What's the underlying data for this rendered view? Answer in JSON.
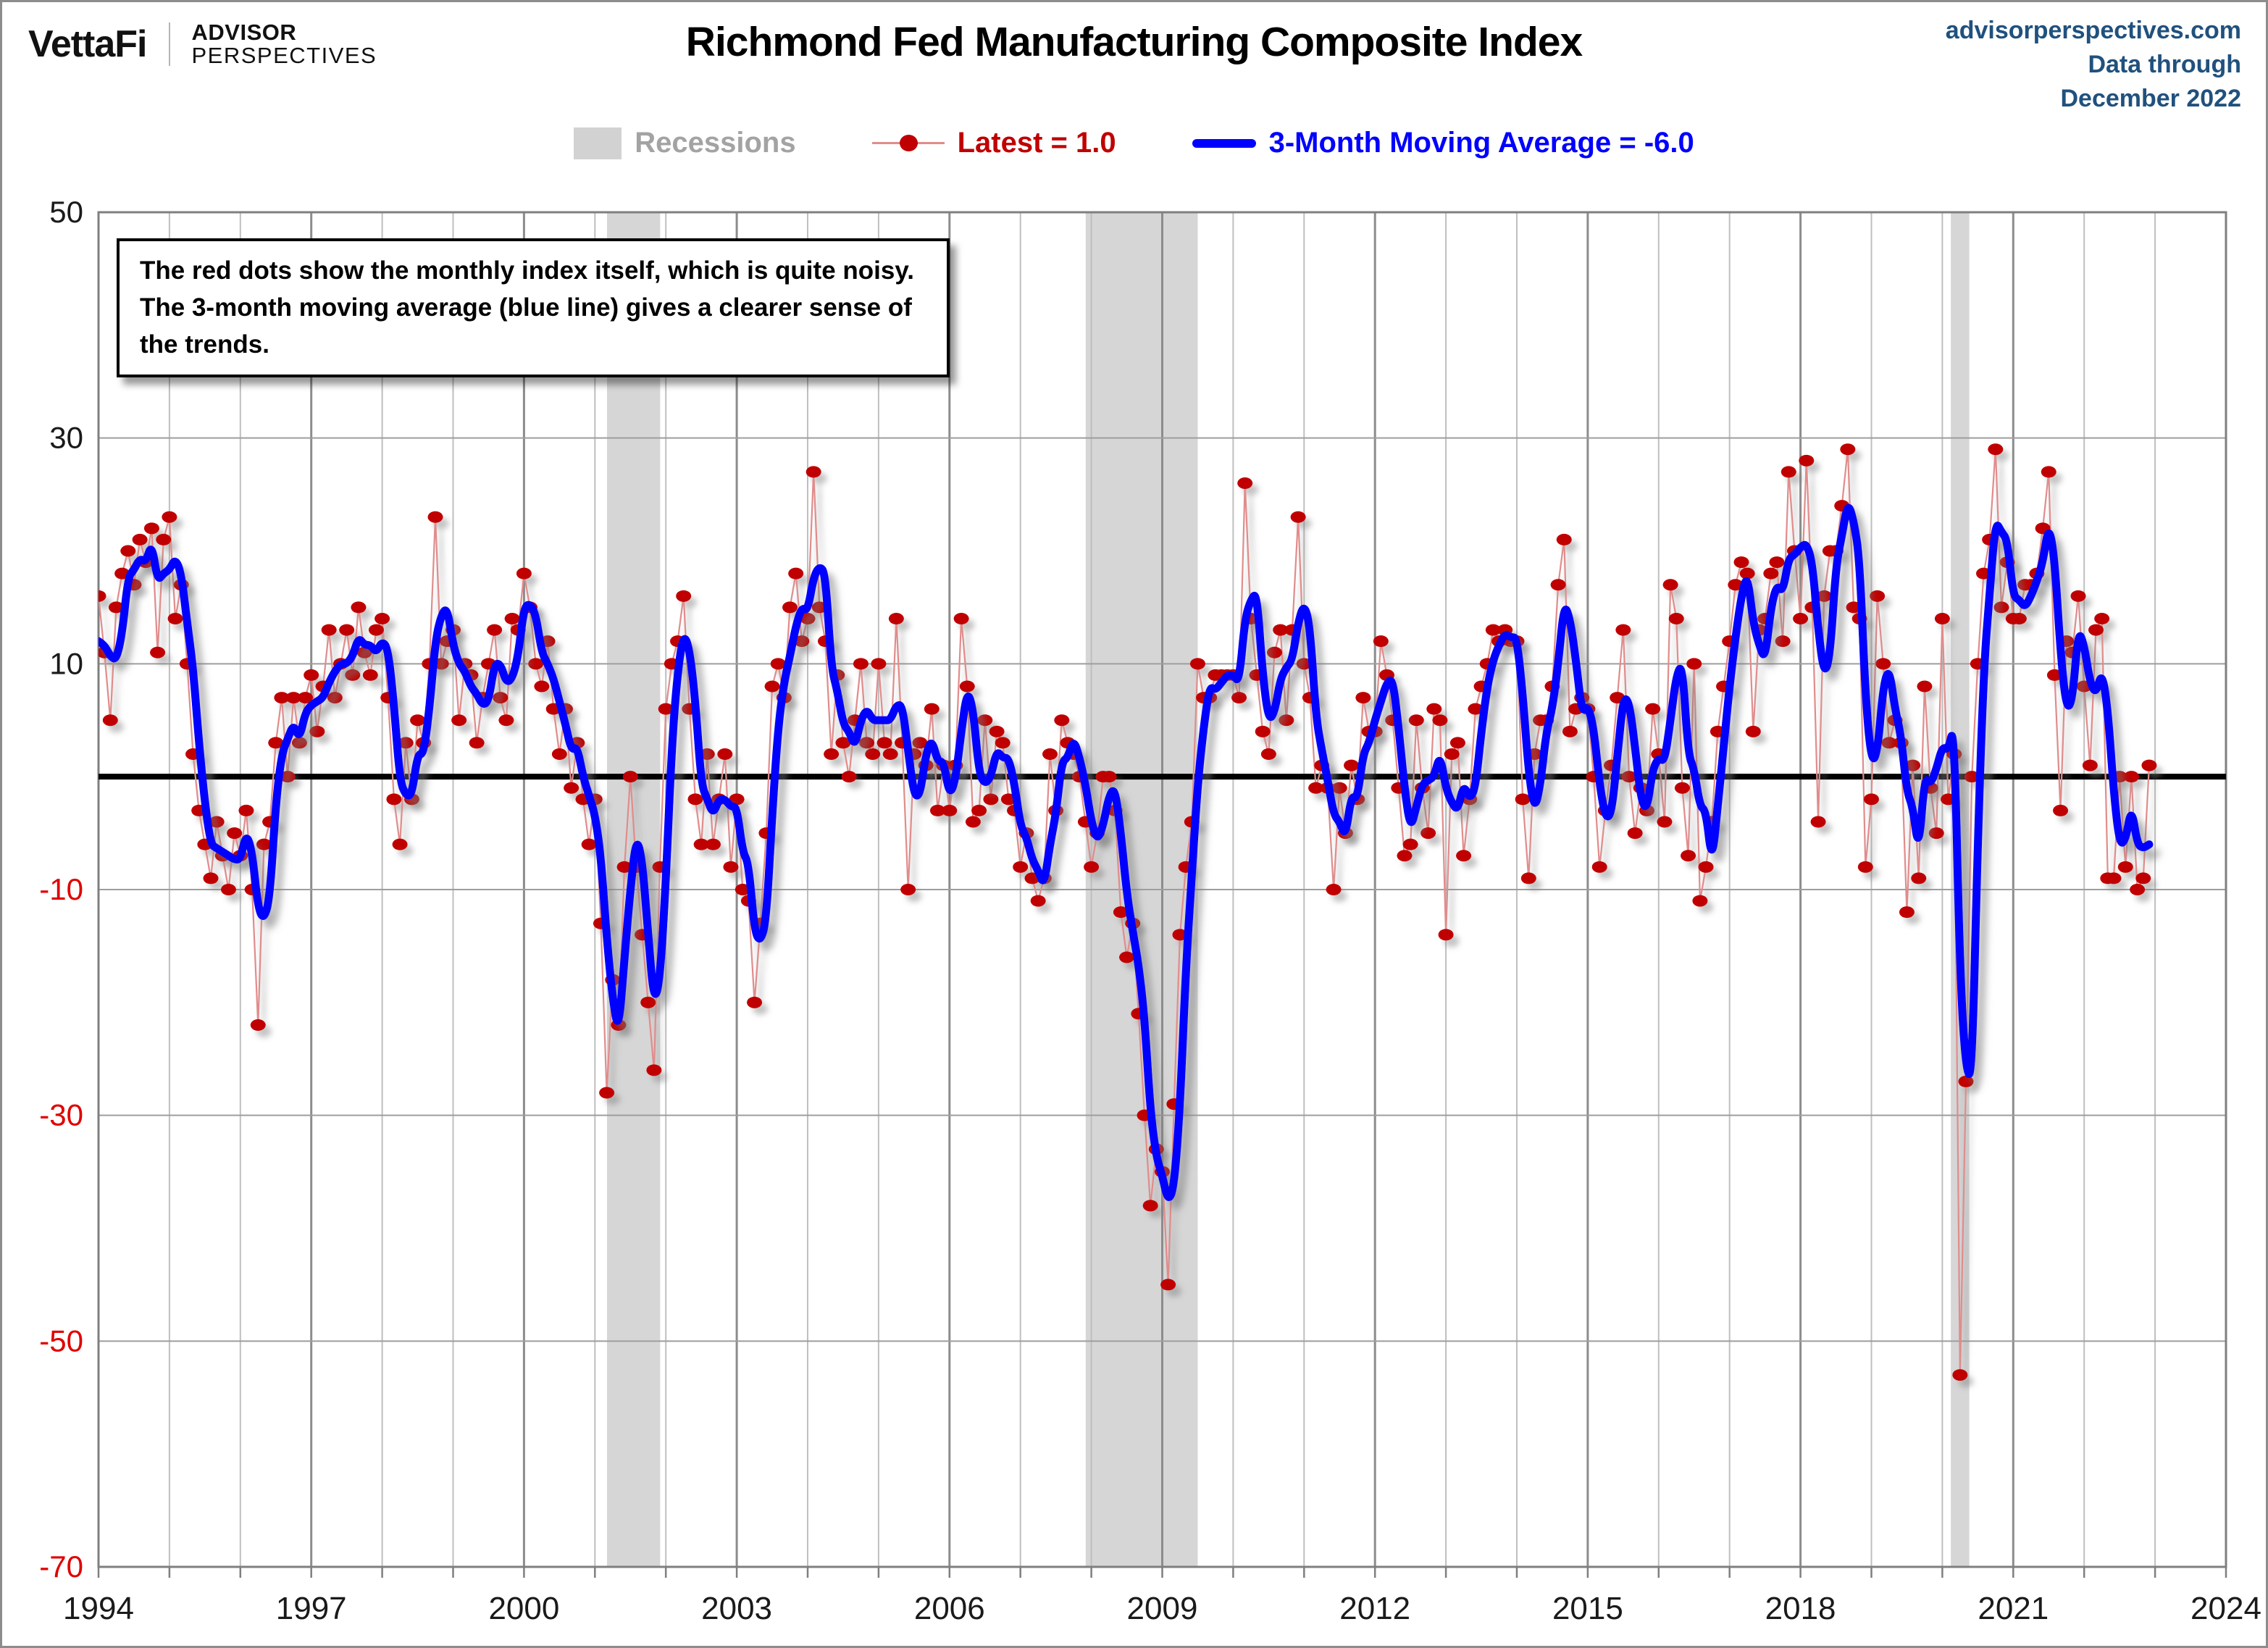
{
  "header": {
    "brand": {
      "vettafi": "VettaFi",
      "advisor": "ADVISOR",
      "perspectives": "PERSPECTIVES"
    },
    "title": "Richmond Fed Manufacturing Composite Index",
    "source": {
      "line1": "advisorperspectives.com",
      "line2": "Data through",
      "line3": "December 2022"
    }
  },
  "legend": {
    "recessions_label": "Recessions",
    "latest_label": "Latest = 1.0",
    "ma_label": "3-Month Moving Average = -6.0"
  },
  "annotation": "The red dots show the monthly  index itself, which is quite noisy. The 3-month moving average (blue line) gives a clearer sense of the trends.",
  "colors": {
    "dot": "#c00000",
    "thin_line": "#e08c8c",
    "ma_line": "#0000ff",
    "zero_line": "#000000",
    "recession_band": "#d6d6d6",
    "grid_light": "#bfbfbf",
    "grid_dark": "#8c8c8c",
    "grid_horizontal": "#9e9e9e",
    "plot_border": "#7f7f7f",
    "neg_axis_label": "#e00000",
    "source_text": "#20517e"
  },
  "chart_data": {
    "type": "line",
    "title": "Richmond Fed Manufacturing Composite Index",
    "xlabel": "",
    "ylabel": "",
    "frequency": "monthly",
    "x_start": "1994-01",
    "x_end": "2022-12",
    "ylim": [
      -70,
      50
    ],
    "yticks": [
      50,
      30,
      10,
      -10,
      -30,
      -50,
      -70
    ],
    "xticks": [
      1994,
      1997,
      2000,
      2003,
      2006,
      2009,
      2012,
      2015,
      2018,
      2021,
      2024
    ],
    "x_axis_end_year": 2024,
    "grid": true,
    "zero_line": 0,
    "legend_position": "top",
    "recessions": [
      [
        2001.17,
        2001.92
      ],
      [
        2007.92,
        2009.5
      ],
      [
        2020.12,
        2020.38
      ]
    ],
    "series": [
      {
        "name": "Latest (monthly index)",
        "style": "scatter-with-thin-line",
        "color": "#c00000",
        "latest_value": 1.0
      },
      {
        "name": "3-Month Moving Average",
        "style": "thick-line",
        "color": "#0000ff",
        "latest_value": -6.0,
        "derivation": "trailing 3-month mean of the monthly values"
      }
    ],
    "ma_warmup_late_1993": [
      12,
      8
    ],
    "monthly_values_by_year": {
      "1994": [
        16,
        11,
        5,
        15,
        18,
        20,
        17,
        21,
        19,
        22,
        11,
        21
      ],
      "1995": [
        23,
        14,
        17,
        10,
        2,
        -3,
        -6,
        -9,
        -4,
        -7,
        -10,
        -5
      ],
      "1996": [
        -7,
        -3,
        -10,
        -22,
        -6,
        -4,
        3,
        7,
        0,
        7,
        3,
        7
      ],
      "1997": [
        9,
        4,
        8,
        13,
        7,
        10,
        13,
        9,
        15,
        11,
        9,
        13
      ],
      "1998": [
        14,
        7,
        -2,
        -6,
        3,
        -2,
        5,
        3,
        10,
        23,
        10,
        12
      ],
      "1999": [
        13,
        5,
        10,
        9,
        3,
        7,
        10,
        13,
        7,
        5,
        14,
        13
      ],
      "2000": [
        18,
        15,
        10,
        8,
        12,
        6,
        2,
        6,
        -1,
        3,
        -2,
        -6
      ],
      "2001": [
        -2,
        -13,
        -28,
        -18,
        -22,
        -8,
        0,
        -8,
        -14,
        -20,
        -26,
        -8
      ],
      "2002": [
        6,
        10,
        12,
        16,
        6,
        -2,
        -6,
        2,
        -6,
        -2,
        2,
        -8
      ],
      "2003": [
        -2,
        -10,
        -11,
        -20,
        -13,
        -5,
        8,
        10,
        7,
        15,
        18,
        12
      ],
      "2004": [
        14,
        27,
        15,
        12,
        2,
        9,
        3,
        0,
        5,
        10,
        3,
        2
      ],
      "2005": [
        10,
        3,
        2,
        14,
        3,
        -10,
        2,
        3,
        1,
        6,
        -3,
        1
      ],
      "2006": [
        -3,
        1,
        14,
        8,
        -4,
        -3,
        5,
        -2,
        4,
        3,
        -2,
        -3
      ],
      "2007": [
        -8,
        -5,
        -9,
        -11,
        -9,
        2,
        -3,
        5,
        3,
        2,
        0,
        -4
      ],
      "2008": [
        -8,
        -5,
        0,
        0,
        -3,
        -12,
        -16,
        -13,
        -21,
        -30,
        -38,
        -33
      ],
      "2009": [
        -35,
        -45,
        -29,
        -14,
        -8,
        -4,
        10,
        7,
        7,
        9,
        9,
        9
      ],
      "2010": [
        9,
        7,
        26,
        14,
        9,
        4,
        2,
        11,
        13,
        5,
        13,
        23
      ],
      "2011": [
        10,
        7,
        -1,
        1,
        -1,
        -10,
        -1,
        -5,
        1,
        -2,
        7,
        4
      ],
      "2012": [
        4,
        12,
        9,
        5,
        -1,
        -7,
        -6,
        5,
        -1,
        -5,
        6,
        5
      ],
      "2013": [
        -14,
        2,
        3,
        -7,
        -2,
        6,
        8,
        10,
        13,
        12,
        13,
        12
      ],
      "2014": [
        12,
        -2,
        -9,
        2,
        5,
        5,
        8,
        17,
        21,
        4,
        6,
        7
      ],
      "2015": [
        6,
        0,
        -8,
        -3,
        1,
        7,
        13,
        0,
        -5,
        -1,
        -3,
        6
      ],
      "2016": [
        2,
        -4,
        17,
        14,
        -1,
        -7,
        10,
        -11,
        -8,
        -4,
        4,
        8
      ],
      "2017": [
        12,
        17,
        19,
        18,
        4,
        13,
        14,
        18,
        19,
        12,
        27,
        20
      ],
      "2018": [
        14,
        28,
        15,
        -4,
        16,
        20,
        20,
        24,
        29,
        15,
        14,
        -8
      ],
      "2019": [
        -2,
        16,
        10,
        3,
        5,
        3,
        -12,
        1,
        -9,
        8,
        -1,
        -5
      ],
      "2020": [
        14,
        -2,
        2,
        -53,
        -27,
        0,
        10,
        18,
        21,
        29,
        15,
        19
      ],
      "2021": [
        14,
        14,
        17,
        17,
        18,
        22,
        27,
        9,
        -3,
        12,
        11,
        16
      ],
      "2022": [
        8,
        1,
        13,
        14,
        -9,
        -9,
        0,
        -8,
        0,
        -10,
        -9,
        1
      ]
    }
  }
}
